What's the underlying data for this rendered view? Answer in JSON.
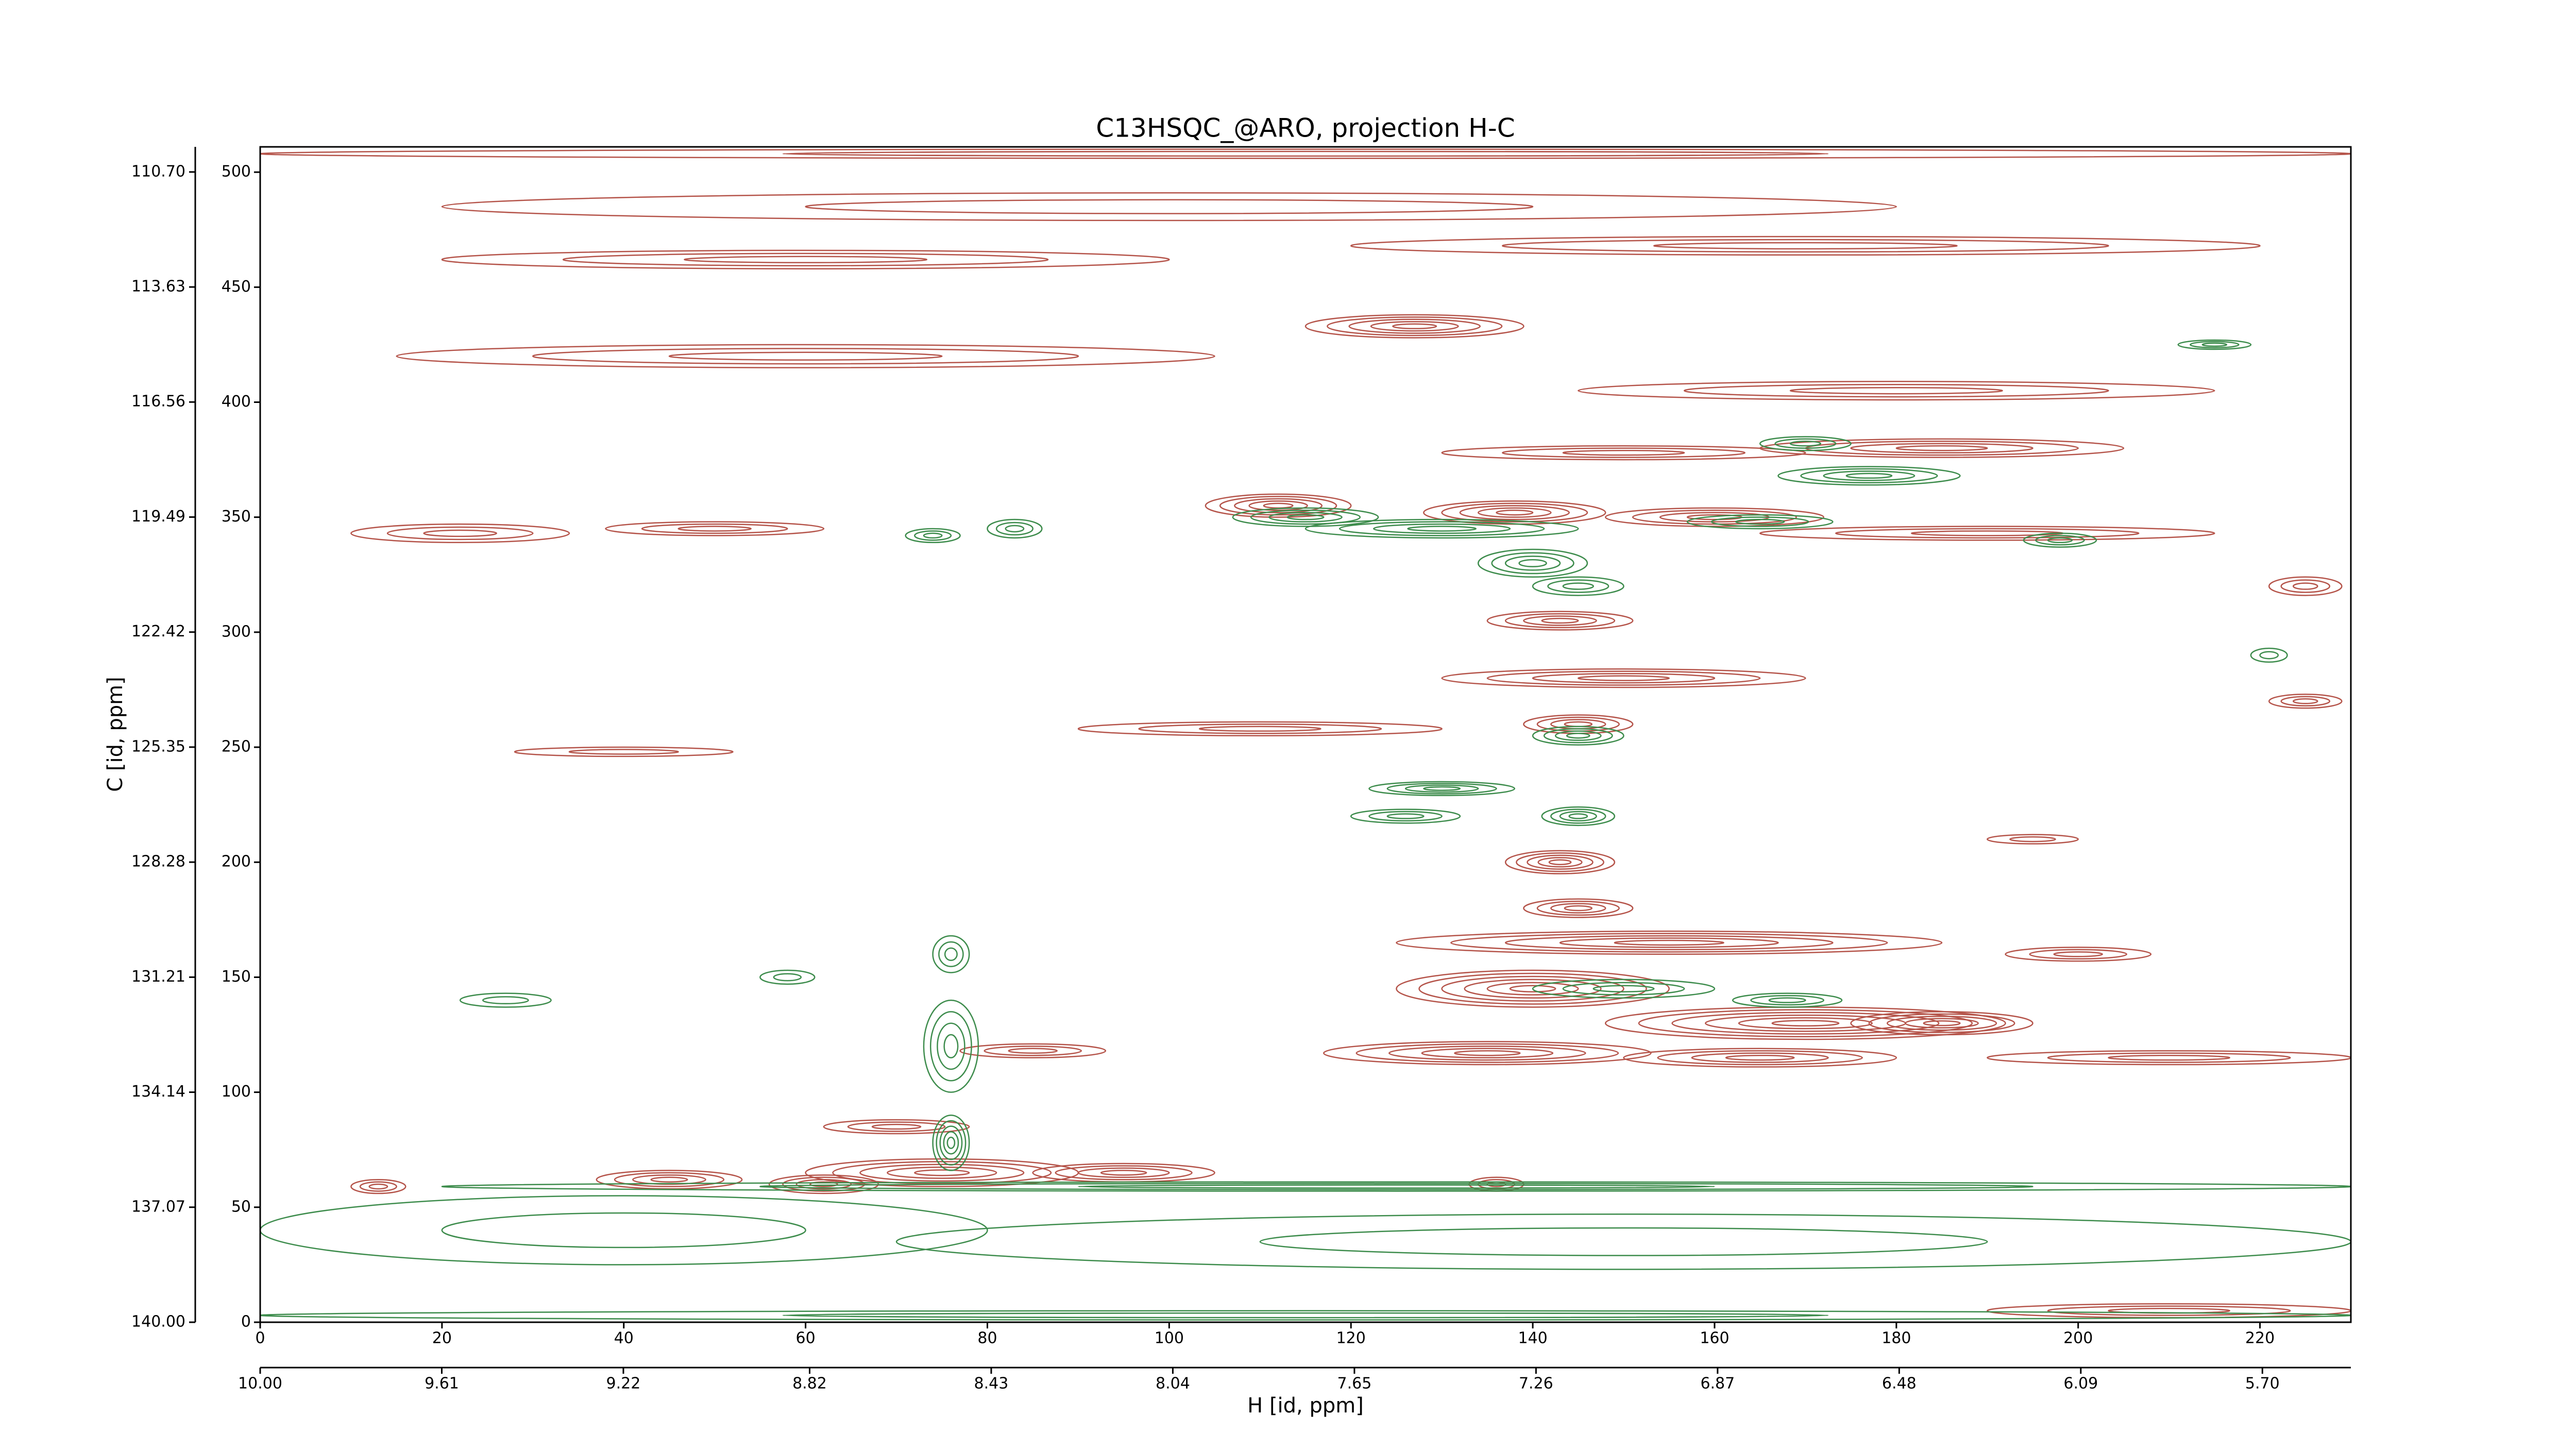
{
  "chart_data": {
    "type": "contour",
    "title": "C13HSQC_@ARO, projection H-C",
    "x_label": "H [id, ppm]",
    "y_label": "C [id, ppm]",
    "xlim": [
      0,
      230
    ],
    "ylim": [
      0,
      511
    ],
    "xticks": [
      0,
      20,
      40,
      60,
      80,
      100,
      120,
      140,
      160,
      180,
      200,
      220
    ],
    "yticks": [
      0,
      50,
      100,
      150,
      200,
      250,
      300,
      350,
      400,
      450,
      500
    ],
    "x2lim": [
      10,
      5.51
    ],
    "x2ticks": [
      {
        "value": 10,
        "label": "10.00"
      },
      9.61,
      9.22,
      8.82,
      8.43,
      8.04,
      7.65,
      7.26,
      6.87,
      6.48,
      6.09,
      {
        "value": 5.7,
        "label": "5.70"
      }
    ],
    "y2lim": [
      140,
      110.06
    ],
    "y2ticks": [
      {
        "value": 140,
        "label": "140.00"
      },
      137.07,
      134.14,
      131.21,
      128.28,
      125.35,
      122.42,
      119.49,
      116.56,
      113.63,
      {
        "value": 110.7,
        "label": "110.70"
      }
    ],
    "contours": [
      {
        "color": "#b5544a",
        "x": [
          115,
          127,
          60,
          170,
          100,
          60,
          180,
          185,
          150,
          22,
          50,
          112,
          138,
          160,
          190,
          143,
          150,
          145,
          110,
          40,
          143,
          145,
          155,
          140,
          170,
          185,
          135,
          165,
          210,
          85,
          70,
          75,
          95,
          62,
          45,
          13,
          136,
          210,
          225,
          195,
          200,
          225
        ],
        "y": [
          508,
          433,
          462,
          468,
          485,
          420,
          405,
          380,
          378,
          343,
          345,
          355,
          352,
          350,
          343,
          305,
          280,
          260,
          258,
          248,
          200,
          180,
          165,
          145,
          130,
          130,
          117,
          115,
          115,
          118,
          85,
          65,
          65,
          60,
          62,
          59,
          60,
          5,
          320,
          210,
          160,
          270
        ],
        "rx": [
          115,
          12,
          40,
          50,
          80,
          45,
          35,
          20,
          20,
          12,
          12,
          8,
          10,
          12,
          25,
          8,
          20,
          6,
          20,
          12,
          6,
          6,
          30,
          15,
          22,
          10,
          18,
          15,
          20,
          8,
          8,
          15,
          10,
          6,
          8,
          3,
          3,
          20,
          4,
          5,
          8,
          4
        ],
        "ry": [
          2,
          5,
          4,
          4,
          6,
          5,
          4,
          4,
          3,
          4,
          3,
          5,
          5,
          4,
          3,
          4,
          4,
          4,
          3,
          2,
          5,
          4,
          5,
          8,
          7,
          5,
          5,
          4,
          3,
          3,
          3,
          6,
          4,
          4,
          4,
          3,
          3,
          3,
          4,
          2,
          3,
          3
        ],
        "levels": [
          2,
          5,
          3,
          3,
          2,
          3,
          3,
          4,
          3,
          3,
          3,
          5,
          5,
          4,
          3,
          4,
          4,
          4,
          3,
          2,
          5,
          4,
          5,
          6,
          6,
          5,
          5,
          4,
          3,
          3,
          3,
          5,
          4,
          4,
          4,
          3,
          3,
          3,
          3,
          2,
          3,
          3
        ]
      },
      {
        "color": "#3d8c4c",
        "x": [
          115,
          125,
          40,
          150,
          76,
          76,
          76,
          115,
          130,
          165,
          140,
          145,
          177,
          170,
          215,
          130,
          145,
          126,
          145,
          168,
          150,
          83,
          74,
          198,
          221,
          27,
          58
        ],
        "y": [
          3,
          59,
          40,
          35,
          78,
          120,
          160,
          350,
          345,
          348,
          330,
          320,
          368,
          382,
          425,
          232,
          220,
          220,
          255,
          140,
          145,
          345,
          342,
          340,
          290,
          140,
          150
        ],
        "rx": [
          115,
          105,
          40,
          80,
          2,
          3,
          2,
          8,
          15,
          8,
          6,
          5,
          10,
          5,
          4,
          8,
          4,
          6,
          5,
          6,
          10,
          3,
          3,
          4,
          2,
          5,
          3
        ],
        "ry": [
          2,
          2,
          15,
          12,
          12,
          20,
          8,
          4,
          4,
          3,
          6,
          4,
          4,
          3,
          2,
          3,
          4,
          3,
          4,
          3,
          4,
          4,
          3,
          3,
          3,
          3,
          3
        ],
        "levels": [
          2,
          3,
          2,
          2,
          5,
          4,
          3,
          4,
          4,
          3,
          4,
          3,
          4,
          3,
          3,
          4,
          4,
          3,
          4,
          3,
          3,
          3,
          3,
          3,
          2,
          2,
          2
        ]
      }
    ]
  }
}
